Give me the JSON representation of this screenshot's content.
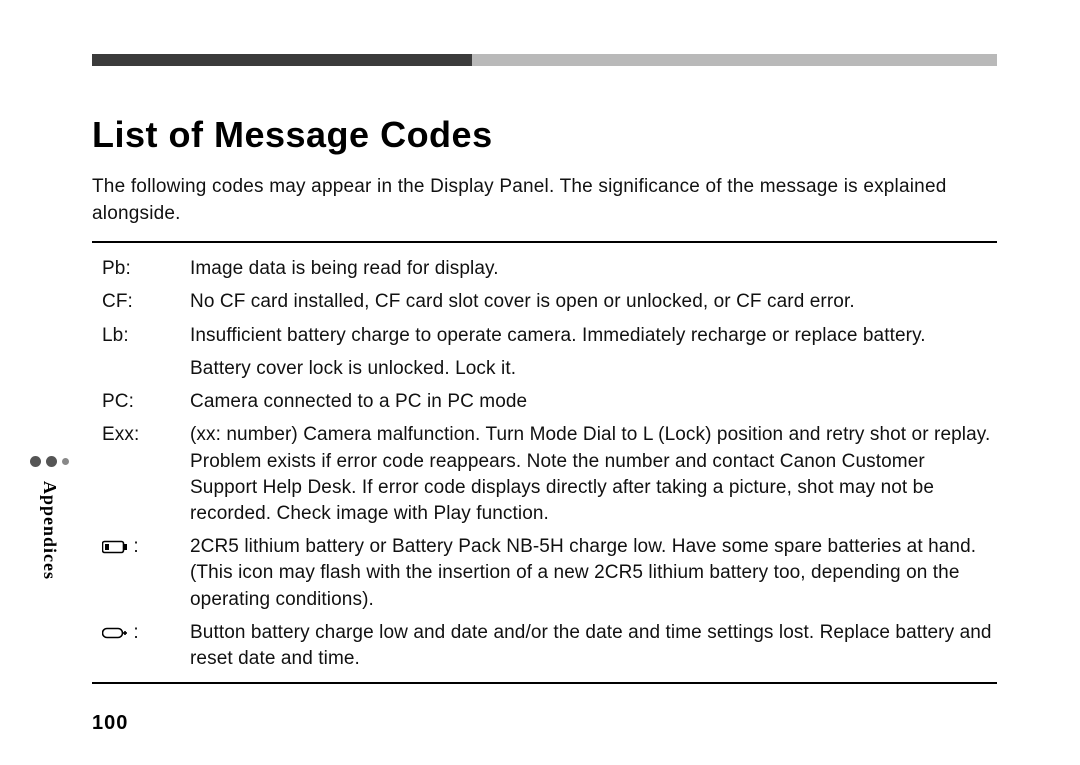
{
  "title": "List of Message Codes",
  "intro": "The following codes may appear in the Display Panel. The significance of the message is explained alongside.",
  "rows": [
    {
      "key": "Pb:",
      "desc": "Image data is being read for display."
    },
    {
      "key": "CF:",
      "desc": "No CF card installed, CF card slot cover is open or unlocked, or CF card error."
    },
    {
      "key": "Lb:",
      "desc": "Insufficient battery charge to operate camera. Immediately recharge or replace battery."
    },
    {
      "key": "",
      "desc": "Battery cover lock is unlocked. Lock it."
    },
    {
      "key": "PC:",
      "desc": "Camera connected to a PC in PC mode"
    },
    {
      "key": "Exx:",
      "desc": "(xx: number) Camera malfunction. Turn Mode Dial to L (Lock) position and retry shot or replay. Problem exists if error code reappears. Note the number and contact Canon Customer Support Help Desk. If error code displays directly after taking a picture, shot may not be recorded. Check image with Play function."
    },
    {
      "key": "__battery_main__:",
      "desc": "2CR5 lithium battery or Battery Pack NB-5H charge low. Have some spare batteries at hand. (This icon may flash with the insertion of a new 2CR5 lithium battery too, depending on the operating conditions)."
    },
    {
      "key": "__battery_coin__:",
      "desc": "Button battery charge low and date and/or the date and time settings lost. Replace battery and reset date and time."
    }
  ],
  "sideTab": "Appendices",
  "pageNumber": "100",
  "colors": {
    "barDark": "#3b3b3b",
    "barLight": "#b9b9b9",
    "text": "#111111",
    "rule": "#000000",
    "background": "#ffffff"
  },
  "typography": {
    "titleFontSize": 36,
    "bodyFontSize": 19,
    "pageNumFontSize": 20,
    "sideTabFontSize": 18
  },
  "layout": {
    "keyColWidth": 88,
    "frameLeft": 92,
    "frameTop": 54,
    "frameWidth": 905
  }
}
